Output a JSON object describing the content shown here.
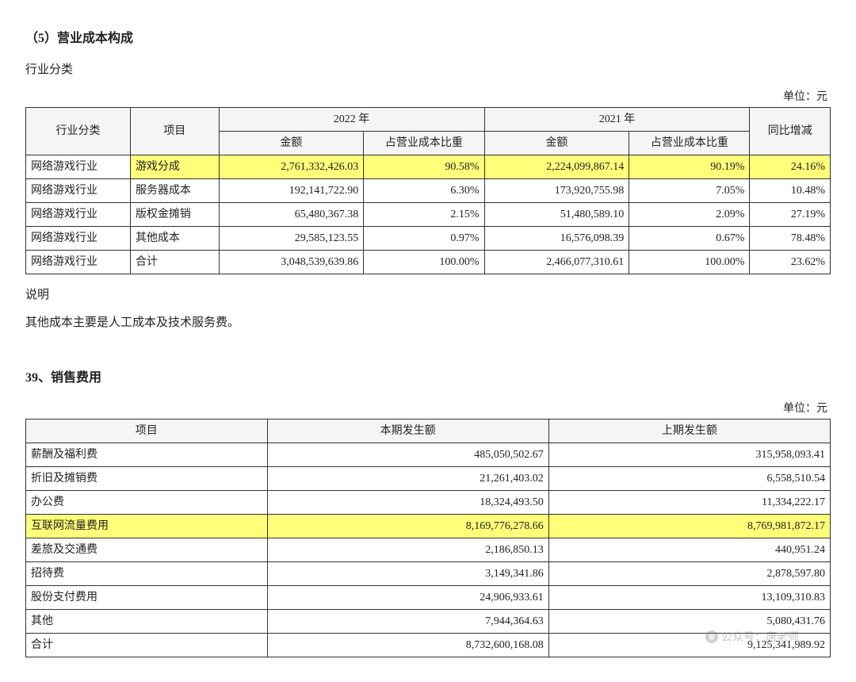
{
  "section1": {
    "heading": "（5）营业成本构成",
    "subheading": "行业分类",
    "unit": "单位：元",
    "table": {
      "header_top": [
        "行业分类",
        "项目",
        "2022 年",
        "2021 年",
        "同比增减"
      ],
      "header_sub": [
        "金额",
        "占营业成本比重",
        "金额",
        "占营业成本比重"
      ],
      "rows": [
        {
          "cat": "网络游戏行业",
          "item": "游戏分成",
          "a2022": "2,761,332,426.03",
          "p2022": "90.58%",
          "a2021": "2,224,099,867.14",
          "p2021": "90.19%",
          "delta": "24.16%",
          "hl": true
        },
        {
          "cat": "网络游戏行业",
          "item": "服务器成本",
          "a2022": "192,141,722.90",
          "p2022": "6.30%",
          "a2021": "173,920,755.98",
          "p2021": "7.05%",
          "delta": "10.48%"
        },
        {
          "cat": "网络游戏行业",
          "item": "版权金摊销",
          "a2022": "65,480,367.38",
          "p2022": "2.15%",
          "a2021": "51,480,589.10",
          "p2021": "2.09%",
          "delta": "27.19%"
        },
        {
          "cat": "网络游戏行业",
          "item": "其他成本",
          "a2022": "29,585,123.55",
          "p2022": "0.97%",
          "a2021": "16,576,098.39",
          "p2021": "0.67%",
          "delta": "78.48%"
        },
        {
          "cat": "网络游戏行业",
          "item": "合计",
          "a2022": "3,048,539,639.86",
          "p2022": "100.00%",
          "a2021": "2,466,077,310.61",
          "p2021": "100.00%",
          "delta": "23.62%"
        }
      ],
      "col_widths": [
        "13%",
        "11%",
        "18%",
        "15%",
        "18%",
        "15%",
        "10%"
      ]
    },
    "note_label": "说明",
    "note_text": "其他成本主要是人工成本及技术服务费。"
  },
  "section2": {
    "heading": "39、销售费用",
    "unit": "单位：元",
    "table": {
      "header": [
        "项目",
        "本期发生额",
        "上期发生额"
      ],
      "col_widths": [
        "30%",
        "35%",
        "35%"
      ],
      "rows": [
        {
          "item": "薪酬及福利费",
          "cur": "485,050,502.67",
          "prev": "315,958,093.41"
        },
        {
          "item": "折旧及摊销费",
          "cur": "21,261,403.02",
          "prev": "6,558,510.54"
        },
        {
          "item": "办公费",
          "cur": "18,324,493.50",
          "prev": "11,334,222.17"
        },
        {
          "item": "互联网流量费用",
          "cur": "8,169,776,278.66",
          "prev": "8,769,981,872.17",
          "hl": true
        },
        {
          "item": "差旅及交通费",
          "cur": "2,186,850.13",
          "prev": "440,951.24"
        },
        {
          "item": "招待费",
          "cur": "3,149,341.86",
          "prev": "2,878,597.80"
        },
        {
          "item": "股份支付费用",
          "cur": "24,906,933.61",
          "prev": "13,109,310.83"
        },
        {
          "item": "其他",
          "cur": "7,944,364.63",
          "prev": "5,080,431.76"
        },
        {
          "item": "合计",
          "cur": "8,732,600,168.08",
          "prev": "9,125,341,989.92"
        }
      ]
    }
  },
  "watermark": "公众号：唐老师",
  "style": {
    "highlight_bg": "#ffff7a",
    "header_bg": "#f5f5f5",
    "border_color": "#333333",
    "font_size_body": 15,
    "font_size_table": 14
  }
}
